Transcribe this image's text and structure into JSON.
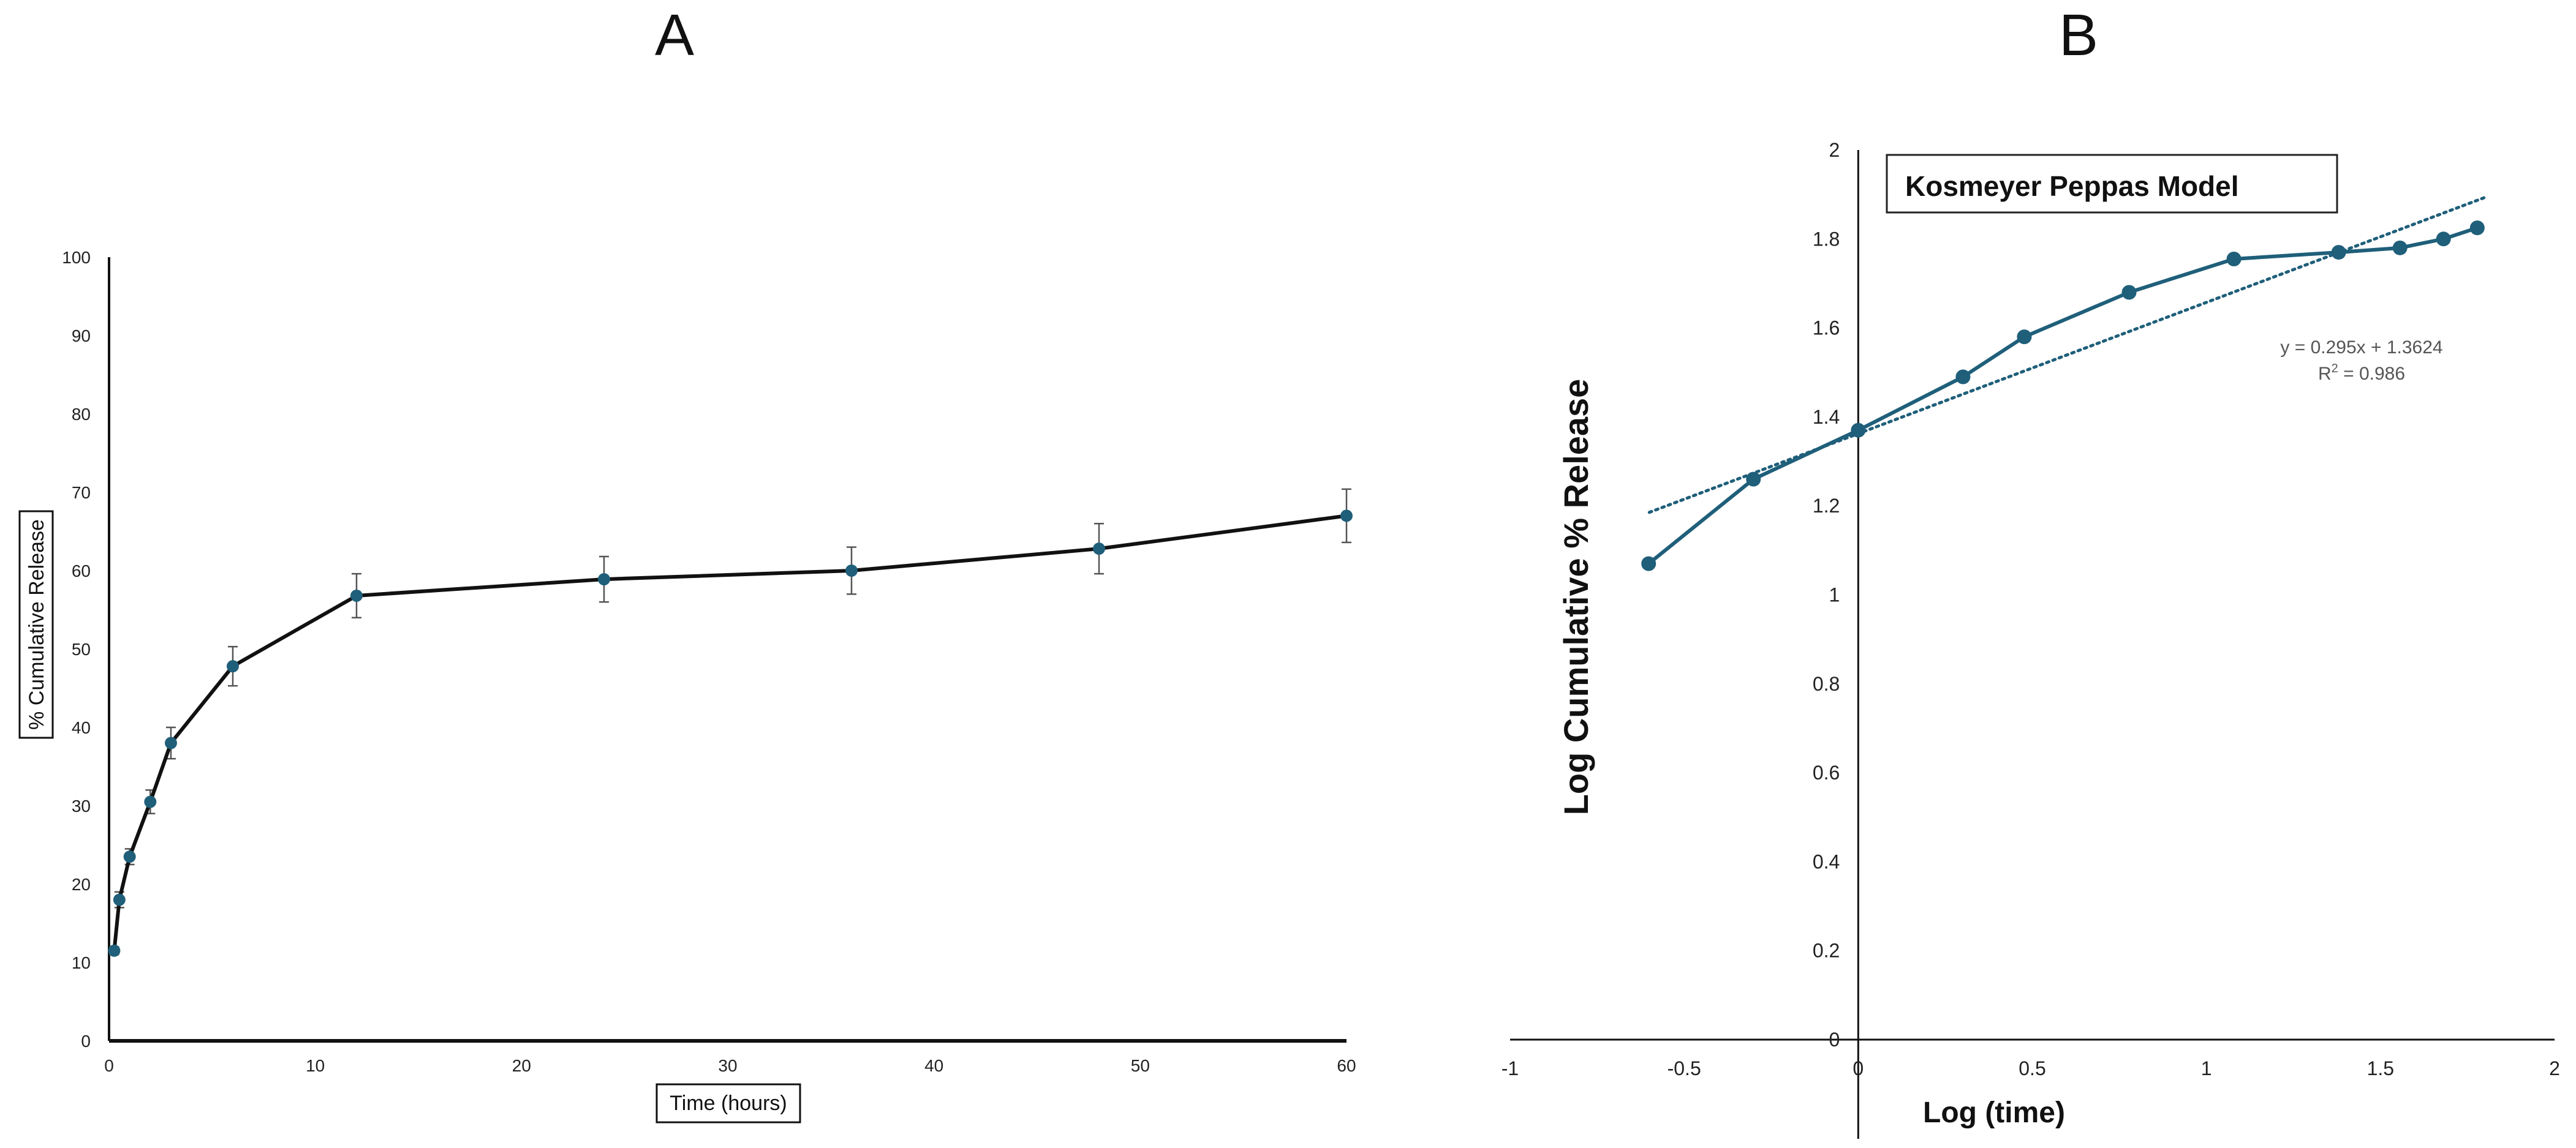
{
  "chart_data": [
    {
      "panel": "A",
      "type": "line",
      "xlabel": "Time (hours)",
      "ylabel": "% Cumulative Release",
      "xlim": [
        0,
        60
      ],
      "ylim": [
        0,
        100
      ],
      "x_ticks": [
        0,
        10,
        20,
        30,
        40,
        50,
        60
      ],
      "y_ticks": [
        0,
        10,
        20,
        30,
        40,
        50,
        60,
        70,
        80,
        90,
        100
      ],
      "grid": false,
      "line_color": "#111111",
      "marker_color": "#1f5f7a",
      "series": [
        {
          "x": [
            0.25,
            0.5,
            1,
            2,
            3,
            6,
            12,
            24,
            36,
            48,
            60
          ],
          "values": [
            11.5,
            18,
            23.5,
            30.5,
            38,
            47.8,
            56.8,
            58.9,
            60,
            62.8,
            67
          ],
          "error": [
            0.5,
            1,
            1,
            1.5,
            2,
            2.5,
            2.8,
            2.9,
            3,
            3.2,
            3.4
          ]
        }
      ]
    },
    {
      "panel": "B",
      "type": "line",
      "title": "Kosmeyer Peppas Model",
      "xlabel": "Log (time)",
      "ylabel": "Log  Cumulative % Release",
      "xlim": [
        -1,
        2
      ],
      "ylim": [
        0,
        2
      ],
      "x_ticks": [
        -1,
        -0.5,
        0,
        0.5,
        1,
        1.5,
        2
      ],
      "y_ticks": [
        0,
        0.2,
        0.4,
        0.6,
        0.8,
        1,
        1.2,
        1.4,
        1.6,
        1.8,
        2
      ],
      "x_tick_labels": [
        "-1",
        "-0.5",
        "0",
        "0.5",
        "1",
        "1.5",
        "2"
      ],
      "y_tick_labels": [
        "0",
        "0.2",
        "0.4",
        "0.6",
        "0.8",
        "1",
        "1.2",
        "1.4",
        "1.6",
        "1.8",
        "2"
      ],
      "grid": false,
      "line_color": "#1f5f7a",
      "series": [
        {
          "x": [
            -0.602,
            -0.301,
            0,
            0.301,
            0.477,
            0.778,
            1.079,
            1.38,
            1.556,
            1.681,
            1.778
          ],
          "values": [
            1.07,
            1.26,
            1.37,
            1.49,
            1.58,
            1.68,
            1.755,
            1.77,
            1.78,
            1.8,
            1.825
          ]
        }
      ],
      "trendline": {
        "slope": 0.295,
        "intercept": 1.3624,
        "x_range": [
          -0.6,
          1.8
        ],
        "equation": "y = 0.295x + 1.3624",
        "r2_label": "R",
        "r2_exp": "2",
        "r2_value": " = 0.986"
      }
    }
  ],
  "panels": {
    "a_label": "A",
    "b_label": "B"
  }
}
